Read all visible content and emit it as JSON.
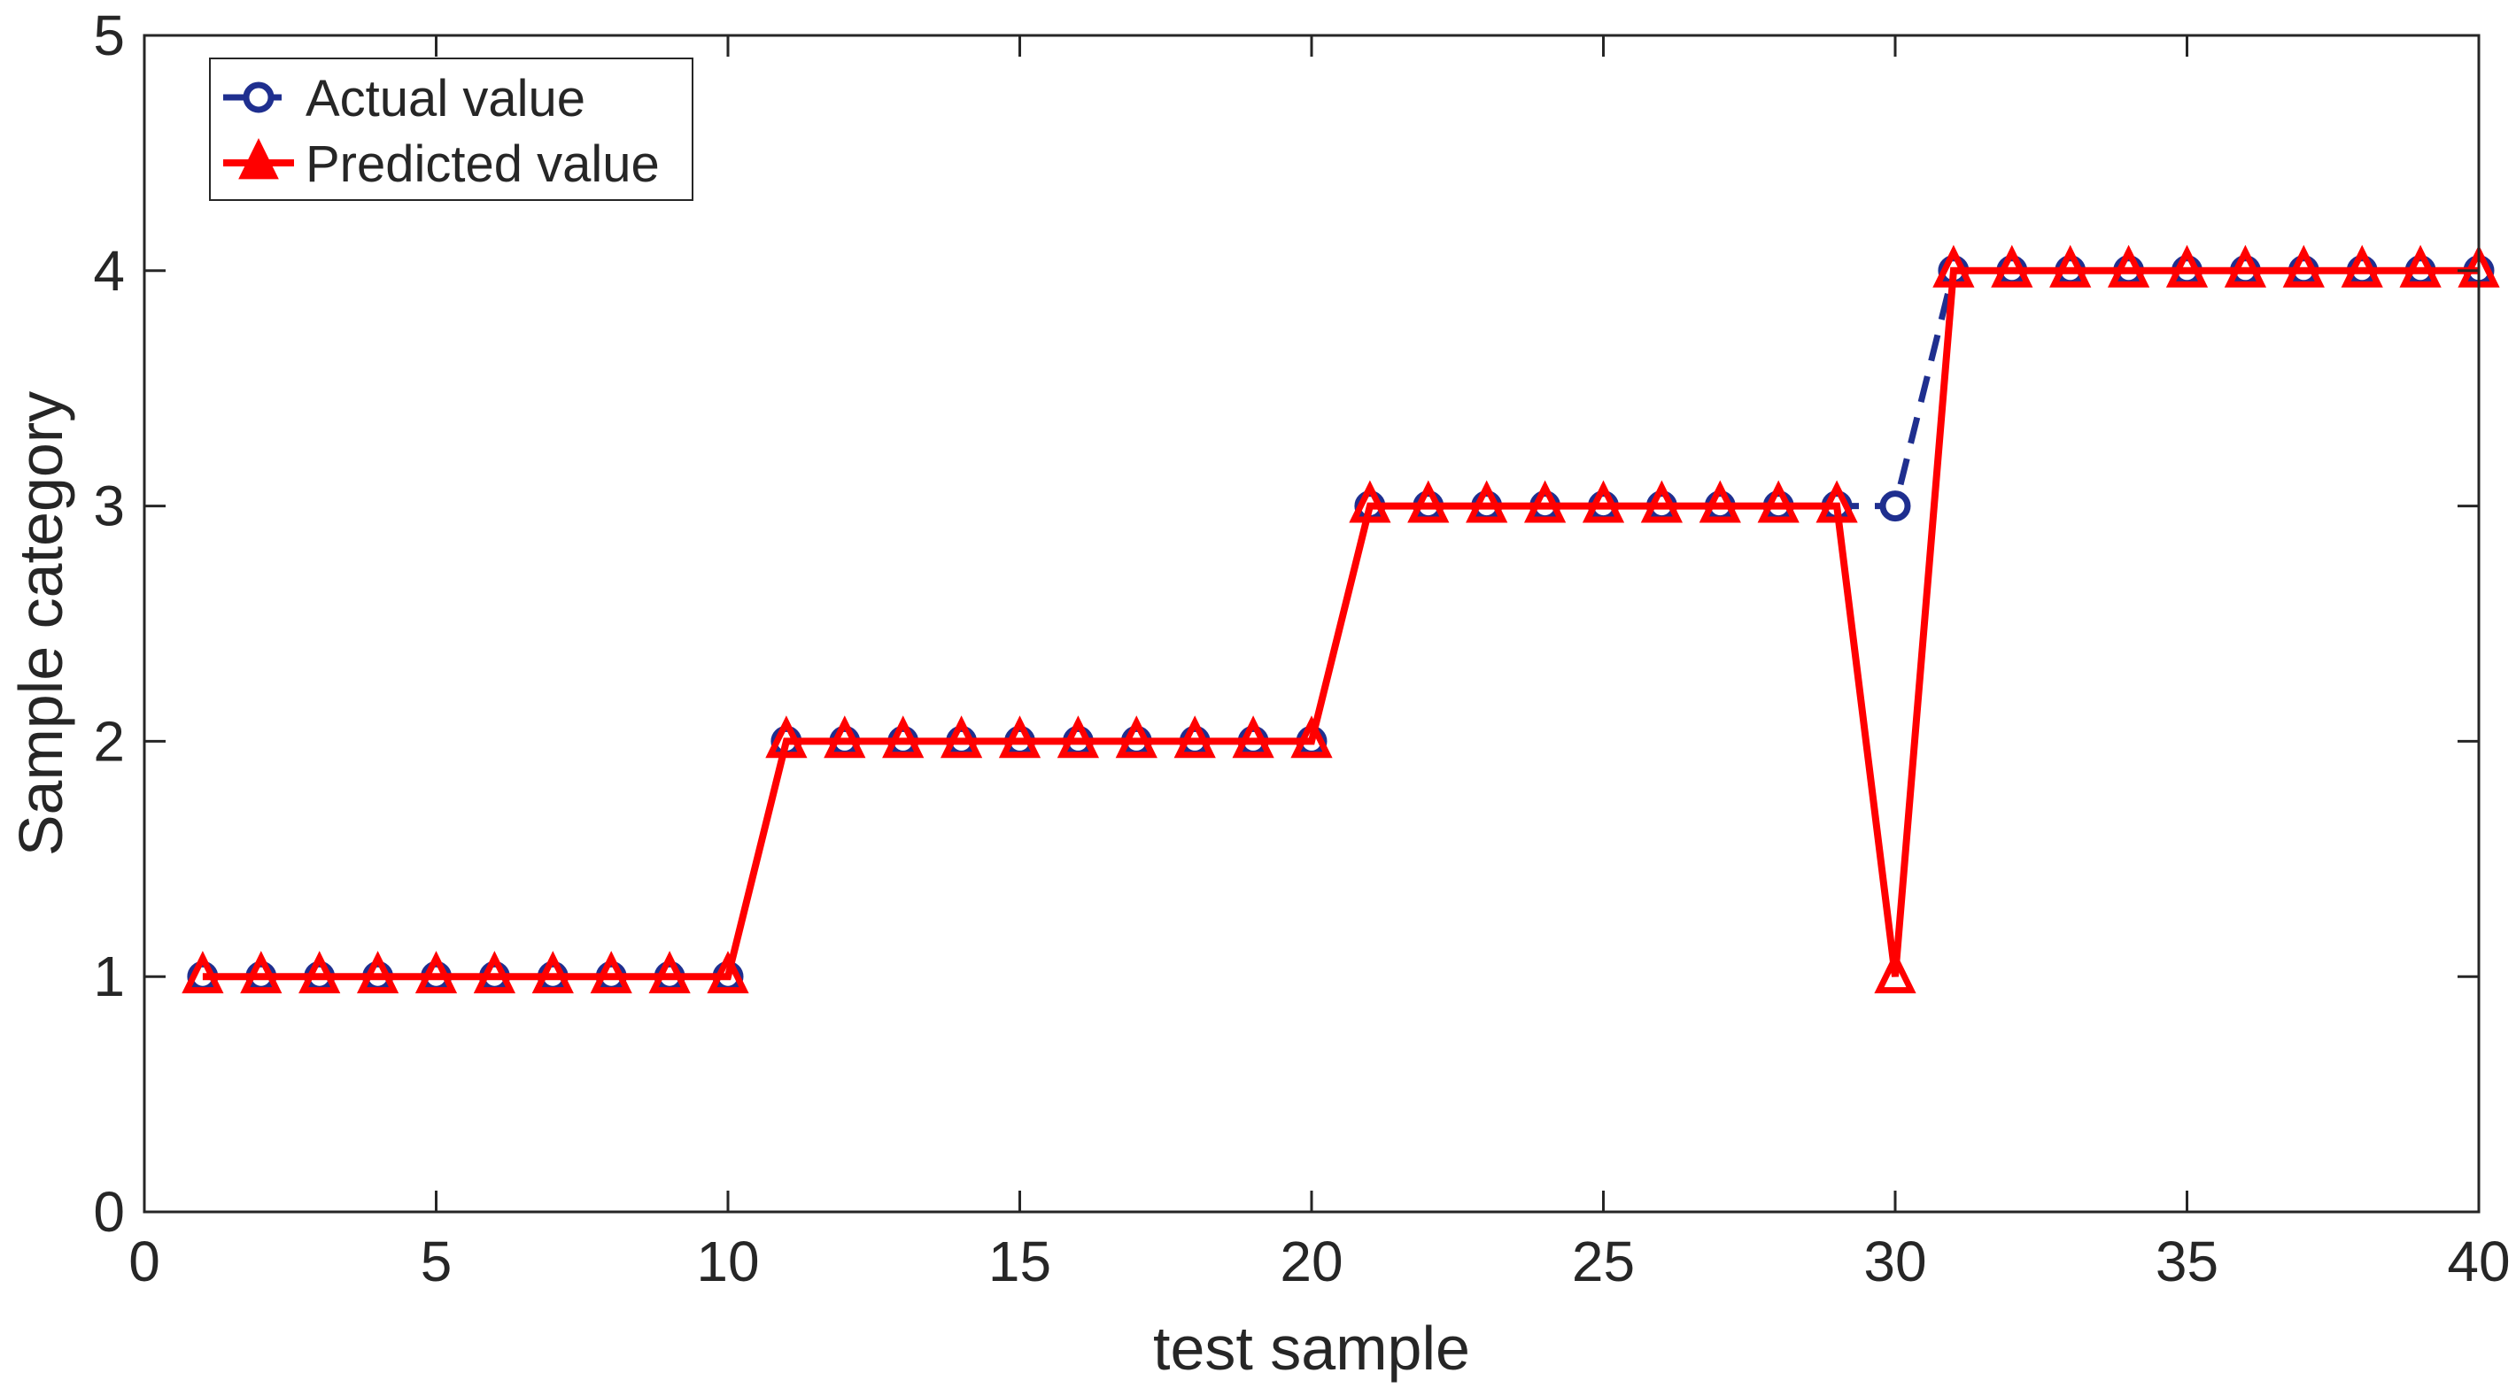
{
  "chart_data": {
    "type": "line",
    "title": "",
    "xlabel": "test sample",
    "ylabel": "Sample category",
    "xlim": [
      0,
      40
    ],
    "ylim": [
      0,
      5
    ],
    "xticks": [
      0,
      5,
      10,
      15,
      20,
      25,
      30,
      35,
      40
    ],
    "yticks": [
      0,
      1,
      2,
      3,
      4,
      5
    ],
    "grid": false,
    "legend_position": "top-left",
    "x": [
      1,
      2,
      3,
      4,
      5,
      6,
      7,
      8,
      9,
      10,
      11,
      12,
      13,
      14,
      15,
      16,
      17,
      18,
      19,
      20,
      21,
      22,
      23,
      24,
      25,
      26,
      27,
      28,
      29,
      30,
      31,
      32,
      33,
      34,
      35,
      36,
      37,
      38,
      39,
      40
    ],
    "series": [
      {
        "name": "Actual value",
        "color": "#1f2f8f",
        "line_style": "dashed",
        "marker": "circle",
        "values": [
          1,
          1,
          1,
          1,
          1,
          1,
          1,
          1,
          1,
          1,
          2,
          2,
          2,
          2,
          2,
          2,
          2,
          2,
          2,
          2,
          3,
          3,
          3,
          3,
          3,
          3,
          3,
          3,
          3,
          3,
          4,
          4,
          4,
          4,
          4,
          4,
          4,
          4,
          4,
          4
        ]
      },
      {
        "name": "Predicted value",
        "color": "#ff0000",
        "line_style": "solid",
        "marker": "triangle",
        "values": [
          1,
          1,
          1,
          1,
          1,
          1,
          1,
          1,
          1,
          1,
          2,
          2,
          2,
          2,
          2,
          2,
          2,
          2,
          2,
          2,
          3,
          3,
          3,
          3,
          3,
          3,
          3,
          3,
          3,
          1,
          4,
          4,
          4,
          4,
          4,
          4,
          4,
          4,
          4,
          4
        ]
      }
    ]
  }
}
